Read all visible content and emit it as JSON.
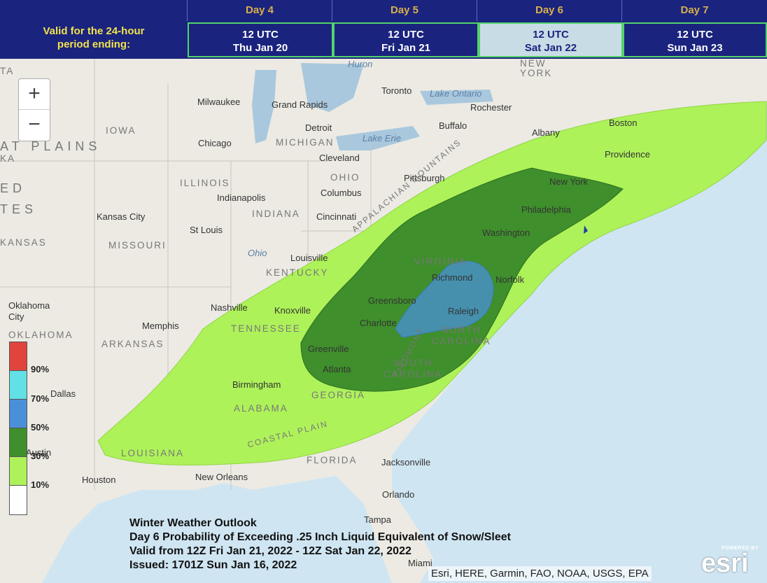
{
  "header": {
    "days": [
      "Day 4",
      "Day 5",
      "Day 6",
      "Day 7"
    ],
    "valid_label_line1": "Valid for the 24-hour",
    "valid_label_line2": "period ending:",
    "dates": [
      {
        "time": "12 UTC",
        "date": "Thu Jan 20"
      },
      {
        "time": "12 UTC",
        "date": "Fri Jan 21"
      },
      {
        "time": "12 UTC",
        "date": "Sat Jan 22"
      },
      {
        "time": "12 UTC",
        "date": "Sun Jan 23"
      }
    ],
    "selected_day": "Day 6"
  },
  "map": {
    "zoom_in": "+",
    "zoom_out": "−",
    "cities": [
      "Milwaukee",
      "Grand Rapids",
      "Toronto",
      "Rochester",
      "Detroit",
      "Buffalo",
      "Albany",
      "Boston",
      "Chicago",
      "Providence",
      "Cleveland",
      "Pittsburgh",
      "New York",
      "Columbus",
      "Indianapolis",
      "Philadelphia",
      "Kansas City",
      "Cincinnati",
      "St Louis",
      "Washington",
      "Louisville",
      "Richmond",
      "Norfolk",
      "Oklahoma City",
      "Nashville",
      "Knoxville",
      "Greensboro",
      "Memphis",
      "Raleigh",
      "Charlotte",
      "Greenville",
      "Dallas",
      "Atlanta",
      "Birmingham",
      "Austin",
      "Houston",
      "New Orleans",
      "Jacksonville",
      "Orlando",
      "Tampa",
      "Miami"
    ],
    "regions": [
      "IOWA",
      "MICHIGAN",
      "OHIO",
      "ILLINOIS",
      "INDIANA",
      "MISSOURI",
      "KENTUCKY",
      "VIRGINIA",
      "TENNESSEE",
      "NORTH CAROLINA",
      "SOUTH CAROLINA",
      "ARKANSAS",
      "OKLAHOMA",
      "GEORGIA",
      "ALABAMA",
      "LOUISIANA",
      "FLORIDA",
      "NEW YORK",
      "KANSAS",
      "TA",
      "KA",
      "ED",
      "TES",
      "APPALACHIAN MOUNTAINS",
      "COASTAL PLAIN",
      "PIEDMONT",
      "AT PLAINS"
    ],
    "water": [
      "Lake Ontario",
      "Lake Erie",
      "Ohio",
      "Huron"
    ]
  },
  "legend": {
    "entries": [
      {
        "label": "90%",
        "color": "#e0443c"
      },
      {
        "label": "70%",
        "color": "#63dfe6"
      },
      {
        "label": "50%",
        "color": "#4a90d9"
      },
      {
        "label": "30%",
        "color": "#3f8f2c"
      },
      {
        "label": "10%",
        "color": "#aef25a"
      },
      {
        "label": "",
        "color": "#ffffff"
      }
    ]
  },
  "caption": {
    "line1": "Winter Weather Outlook",
    "line2": "Day 6 Probability of Exceeding .25 Inch Liquid Equivalent of Snow/Sleet",
    "line3": "Valid from 12Z Fri Jan 21, 2022 - 12Z Sat Jan 22, 2022",
    "line4": "Issued: 1701Z Sun Jan 16, 2022"
  },
  "attribution": "Esri, HERE, Garmin, FAO, NOAA, USGS, EPA",
  "esri_logo": {
    "powered": "POWERED BY",
    "name": "esri"
  },
  "colors": {
    "header_bg": "#1a237e",
    "day_text": "#d6b14a",
    "valid_text": "#f1e24d",
    "selected_bg": "#c8dce6",
    "border_green": "#53d36b"
  }
}
